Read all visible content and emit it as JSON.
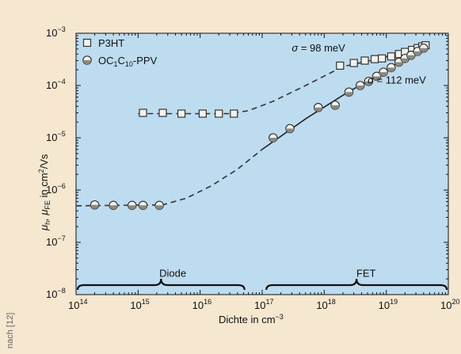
{
  "chart_data": {
    "type": "scatter",
    "title": "",
    "xlabel": "Dichte in cm",
    "xlabel_exp": "−3",
    "ylabel_parts": [
      "μ",
      "h",
      ", μ",
      "FE",
      " in cm",
      "2",
      "/Vs"
    ],
    "xscale": "log",
    "yscale": "log",
    "xlim": [
      100000000000000.0,
      1e+20
    ],
    "ylim": [
      1e-08,
      0.001
    ],
    "x_ticks": [
      {
        "base": "10",
        "exp": "14"
      },
      {
        "base": "10",
        "exp": "15"
      },
      {
        "base": "10",
        "exp": "16"
      },
      {
        "base": "10",
        "exp": "17"
      },
      {
        "base": "10",
        "exp": "18"
      },
      {
        "base": "10",
        "exp": "19"
      },
      {
        "base": "10",
        "exp": "20"
      }
    ],
    "y_ticks": [
      {
        "base": "10",
        "exp": "−8"
      },
      {
        "base": "10",
        "exp": "−7"
      },
      {
        "base": "10",
        "exp": "−6"
      },
      {
        "base": "10",
        "exp": "−5"
      },
      {
        "base": "10",
        "exp": "−4"
      },
      {
        "base": "10",
        "exp": "−3"
      }
    ],
    "legend_position": "top-left",
    "background_color": "#bedcf0",
    "series": [
      {
        "name": "P3HT",
        "marker": "square",
        "points": [
          [
            1200000000000000.0,
            3e-05
          ],
          [
            2500000000000000.0,
            3e-05
          ],
          [
            5000000000000000.0,
            2.9e-05
          ],
          [
            1.1e+16,
            2.9e-05
          ],
          [
            2e+16,
            2.9e-05
          ],
          [
            3.5e+16,
            2.9e-05
          ],
          [
            1.8e+18,
            0.00024
          ],
          [
            3e+18,
            0.00027
          ],
          [
            4.5e+18,
            0.0003
          ],
          [
            6.5e+18,
            0.00032
          ],
          [
            8.5e+18,
            0.00033
          ],
          [
            1.2e+19,
            0.00036
          ],
          [
            1.6e+19,
            0.0004
          ],
          [
            2e+19,
            0.00044
          ],
          [
            2.6e+19,
            0.00048
          ],
          [
            3.2e+19,
            0.00052
          ],
          [
            3.8e+19,
            0.00056
          ],
          [
            4.3e+19,
            0.00059
          ]
        ],
        "fit": [
          [
            1000000000000000.0,
            2.9e-05
          ],
          [
            3e+16,
            2.9e-05
          ],
          [
            6e+16,
            3.3e-05
          ],
          [
            1.5e+17,
            5e-05
          ],
          [
            5e+17,
            0.0001
          ],
          [
            2e+18,
            0.00023
          ],
          [
            8e+18,
            0.00033
          ],
          [
            2e+19,
            0.00045
          ],
          [
            4.5e+19,
            0.00062
          ]
        ]
      },
      {
        "name_parts": [
          "OC",
          "1",
          "C",
          "10",
          "-PPV"
        ],
        "marker": "circle",
        "points": [
          [
            200000000000000.0,
            5.2e-07
          ],
          [
            400000000000000.0,
            5.1e-07
          ],
          [
            800000000000000.0,
            5.1e-07
          ],
          [
            1200000000000000.0,
            5.1e-07
          ],
          [
            2200000000000000.0,
            5.1e-07
          ],
          [
            1.5e+17,
            1e-05
          ],
          [
            2.8e+17,
            1.5e-05
          ],
          [
            8e+17,
            3.8e-05
          ],
          [
            1.5e+18,
            4.2e-05
          ],
          [
            2.5e+18,
            7.5e-05
          ],
          [
            3.8e+18,
            0.0001
          ],
          [
            5.2e+18,
            0.00012
          ],
          [
            7e+18,
            0.00015
          ],
          [
            9e+18,
            0.00018
          ],
          [
            1.2e+19,
            0.00022
          ],
          [
            1.6e+19,
            0.00028
          ],
          [
            2e+19,
            0.00033
          ],
          [
            2.5e+19,
            0.00038
          ],
          [
            3.2e+19,
            0.00045
          ],
          [
            4e+19,
            0.00052
          ]
        ],
        "fit": [
          [
            100000000000000.0,
            5e-07
          ],
          [
            2500000000000000.0,
            5.2e-07
          ],
          [
            6000000000000000.0,
            7e-07
          ],
          [
            1.5e+16,
            1.2e-06
          ],
          [
            4e+16,
            2.5e-06
          ],
          [
            1e+17,
            6e-06
          ],
          [
            5e+17,
            2.3e-05
          ],
          [
            2e+18,
            6.5e-05
          ],
          [
            1e+19,
            0.0002
          ],
          [
            4.5e+19,
            0.0006
          ]
        ]
      }
    ],
    "annotations": [
      {
        "text": "σ = 98 meV",
        "x": 3e+17,
        "y": 0.00045
      },
      {
        "text": "σ = 112 meV",
        "x": 5e+18,
        "y": 0.00011
      },
      {
        "text": "Diode",
        "x": 2200000000000000.0,
        "y": 2.2e-08
      },
      {
        "text": "FET",
        "x": 3.3e+18,
        "y": 2.2e-08
      }
    ],
    "braces": [
      {
        "label": "Diode",
        "x_from": 100000000000000.0,
        "x_to": 5.5e+16
      },
      {
        "label": "FET",
        "x_from": 1.1e+17,
        "x_to": 1e+20
      }
    ],
    "source_note": "nach [12]"
  }
}
